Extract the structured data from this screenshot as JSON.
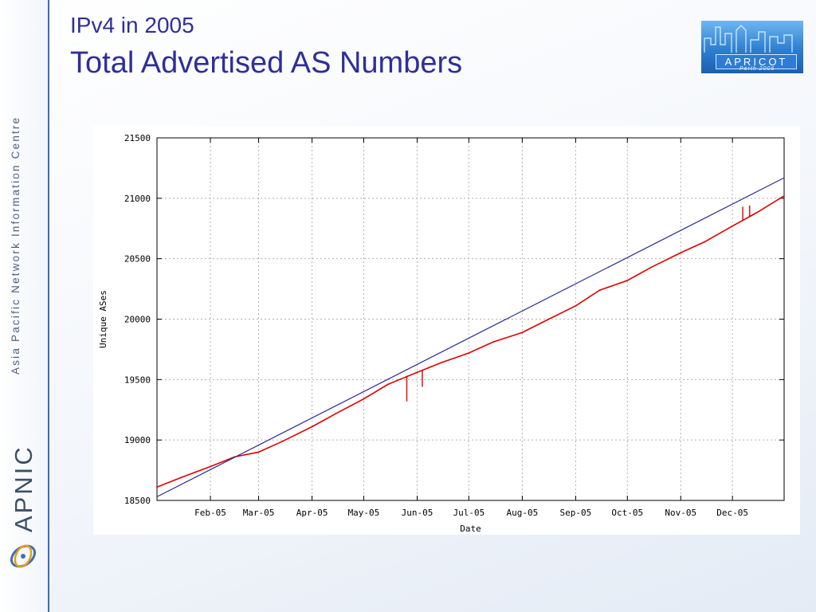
{
  "slide": {
    "title_line1": "IPv4 in 2005",
    "title_line2": "Total Advertised AS Numbers"
  },
  "sidebar": {
    "org_name": "Asia Pacific Network Information Centre",
    "brand": "APNIC"
  },
  "conference_logo": {
    "name": "APRICOT",
    "sub": "Perth 2006"
  },
  "colors": {
    "title": "#2e2f9a",
    "data_line": "#e00000",
    "trend_line": "#2a2a9a",
    "grid": "#b0b0b0"
  },
  "chart_data": {
    "type": "line",
    "xlabel": "Date",
    "ylabel": "Unique ASes",
    "ylim": [
      18500,
      21500
    ],
    "yticks": [
      18500,
      19000,
      19500,
      20000,
      20500,
      21000,
      21500
    ],
    "xlim": [
      "2005-01-01",
      "2005-12-31"
    ],
    "xticks": [
      {
        "date": "2005-02-01",
        "label": "Feb-05"
      },
      {
        "date": "2005-03-01",
        "label": "Mar-05"
      },
      {
        "date": "2005-04-01",
        "label": "Apr-05"
      },
      {
        "date": "2005-05-01",
        "label": "May-05"
      },
      {
        "date": "2005-06-01",
        "label": "Jun-05"
      },
      {
        "date": "2005-07-01",
        "label": "Jul-05"
      },
      {
        "date": "2005-08-01",
        "label": "Aug-05"
      },
      {
        "date": "2005-09-01",
        "label": "Sep-05"
      },
      {
        "date": "2005-10-01",
        "label": "Oct-05"
      },
      {
        "date": "2005-11-01",
        "label": "Nov-05"
      },
      {
        "date": "2005-12-01",
        "label": "Dec-05"
      }
    ],
    "grid": true,
    "series": [
      {
        "role": "data",
        "x": [
          "2005-01-01",
          "2005-01-15",
          "2005-02-01",
          "2005-02-15",
          "2005-03-01",
          "2005-03-15",
          "2005-04-01",
          "2005-04-15",
          "2005-05-01",
          "2005-05-15",
          "2005-06-01",
          "2005-06-15",
          "2005-07-01",
          "2005-07-15",
          "2005-08-01",
          "2005-08-15",
          "2005-09-01",
          "2005-09-15",
          "2005-10-01",
          "2005-10-15",
          "2005-11-01",
          "2005-11-15",
          "2005-12-01",
          "2005-12-15",
          "2005-12-31"
        ],
        "y": [
          18610,
          18690,
          18780,
          18860,
          18900,
          18990,
          19110,
          19220,
          19340,
          19460,
          19560,
          19640,
          19720,
          19810,
          19890,
          19990,
          20110,
          20240,
          20320,
          20430,
          20550,
          20640,
          20770,
          20880,
          21020
        ],
        "spikes": [
          {
            "x": "2005-05-26",
            "y": 19320
          },
          {
            "x": "2005-06-04",
            "y": 19440
          },
          {
            "x": "2005-06-13",
            "y": 19630
          },
          {
            "x": "2005-12-07",
            "y": 20930
          },
          {
            "x": "2005-12-11",
            "y": 20940
          }
        ]
      },
      {
        "role": "trend",
        "x": [
          "2005-01-01",
          "2005-12-31"
        ],
        "y": [
          18530,
          21170
        ]
      }
    ]
  }
}
